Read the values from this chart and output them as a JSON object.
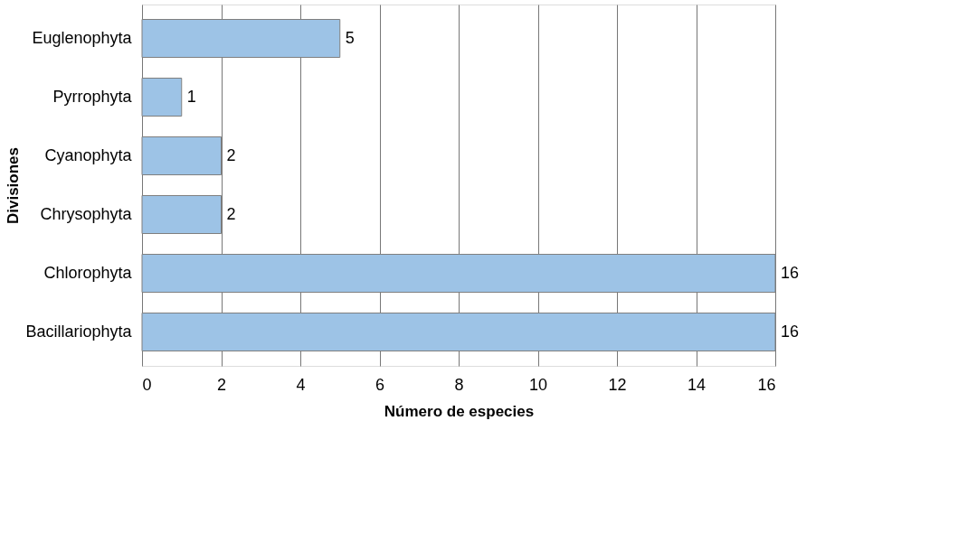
{
  "chart_data": {
    "type": "bar",
    "orientation": "horizontal",
    "xlabel": "Número de especies",
    "ylabel": "Divisiones",
    "categories": [
      "Euglenophyta",
      "Pyrrophyta",
      "Cyanophyta",
      "Chrysophyta",
      "Chlorophyta",
      "Bacillariophyta"
    ],
    "values": [
      5,
      1,
      2,
      2,
      16,
      16
    ],
    "color": "#9dc3e6",
    "xlim": [
      0,
      16
    ],
    "xticks": [
      0,
      2,
      4,
      6,
      8,
      10,
      12,
      14,
      16
    ],
    "grid": "x",
    "data_labels": true
  }
}
